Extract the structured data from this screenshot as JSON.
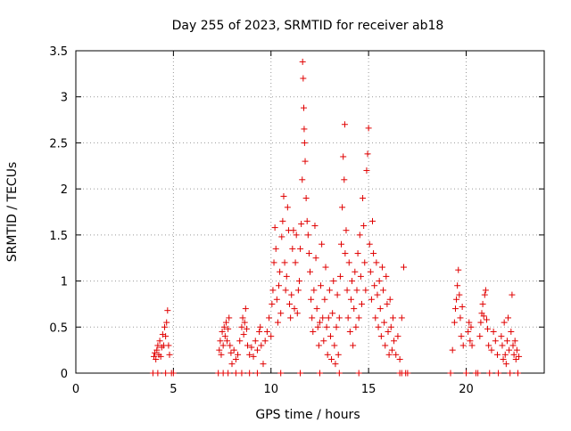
{
  "chart_data": {
    "type": "scatter",
    "title": "Day 255 of 2023, SRMTID for receiver ab18",
    "xlabel": "GPS time / hours",
    "ylabel": "SRMTID / TECUs",
    "xlim": [
      0,
      24
    ],
    "ylim": [
      0,
      3.5
    ],
    "xticks": [
      0,
      5,
      10,
      15,
      20
    ],
    "xtick_labels": [
      "0",
      "5",
      "10",
      "15",
      "20"
    ],
    "yticks": [
      0,
      0.5,
      1,
      1.5,
      2,
      2.5,
      3,
      3.5
    ],
    "ytick_labels": [
      "0",
      "0.5",
      "1",
      "1.5",
      "2",
      "2.5",
      "3",
      "3.5"
    ],
    "grid": true,
    "marker": "+",
    "marker_color": "#e00000",
    "series": [
      {
        "name": "SRMTID",
        "points": [
          [
            3.95,
            0.0
          ],
          [
            4.0,
            0.18
          ],
          [
            4.05,
            0.22
          ],
          [
            4.1,
            0.15
          ],
          [
            4.15,
            0.25
          ],
          [
            4.2,
            0.3
          ],
          [
            4.25,
            0.2
          ],
          [
            4.3,
            0.35
          ],
          [
            4.35,
            0.18
          ],
          [
            4.4,
            0.28
          ],
          [
            4.45,
            0.42
          ],
          [
            4.5,
            0.3
          ],
          [
            4.55,
            0.5
          ],
          [
            4.6,
            0.4
          ],
          [
            4.65,
            0.55
          ],
          [
            4.7,
            0.68
          ],
          [
            4.75,
            0.3
          ],
          [
            4.8,
            0.2
          ],
          [
            4.9,
            0.0
          ],
          [
            5.0,
            0.0
          ],
          [
            4.2,
            0.0
          ],
          [
            4.6,
            0.0
          ],
          [
            7.3,
            0.0
          ],
          [
            7.35,
            0.25
          ],
          [
            7.4,
            0.35
          ],
          [
            7.45,
            0.2
          ],
          [
            7.5,
            0.45
          ],
          [
            7.55,
            0.3
          ],
          [
            7.6,
            0.5
          ],
          [
            7.65,
            0.4
          ],
          [
            7.7,
            0.55
          ],
          [
            7.75,
            0.35
          ],
          [
            7.8,
            0.48
          ],
          [
            7.85,
            0.6
          ],
          [
            7.9,
            0.3
          ],
          [
            7.95,
            0.22
          ],
          [
            7.55,
            0.0
          ],
          [
            7.8,
            0.0
          ],
          [
            8.0,
            0.1
          ],
          [
            8.1,
            0.25
          ],
          [
            8.2,
            0.15
          ],
          [
            8.3,
            0.2
          ],
          [
            8.4,
            0.35
          ],
          [
            8.5,
            0.5
          ],
          [
            8.55,
            0.6
          ],
          [
            8.6,
            0.42
          ],
          [
            8.65,
            0.55
          ],
          [
            8.7,
            0.7
          ],
          [
            8.75,
            0.48
          ],
          [
            8.8,
            0.3
          ],
          [
            8.9,
            0.2
          ],
          [
            9.0,
            0.28
          ],
          [
            9.1,
            0.18
          ],
          [
            9.2,
            0.35
          ],
          [
            9.3,
            0.25
          ],
          [
            9.4,
            0.45
          ],
          [
            9.45,
            0.5
          ],
          [
            9.5,
            0.3
          ],
          [
            9.6,
            0.1
          ],
          [
            8.2,
            0.0
          ],
          [
            8.5,
            0.0
          ],
          [
            8.9,
            0.0
          ],
          [
            9.3,
            0.0
          ],
          [
            9.7,
            0.35
          ],
          [
            9.8,
            0.45
          ],
          [
            9.9,
            0.6
          ],
          [
            10.0,
            0.4
          ],
          [
            10.05,
            0.75
          ],
          [
            10.1,
            0.9
          ],
          [
            10.15,
            1.2
          ],
          [
            10.2,
            1.58
          ],
          [
            10.25,
            1.35
          ],
          [
            10.3,
            0.8
          ],
          [
            10.35,
            0.55
          ],
          [
            10.4,
            0.95
          ],
          [
            10.45,
            1.1
          ],
          [
            10.5,
            0.65
          ],
          [
            10.55,
            1.48
          ],
          [
            10.6,
            1.65
          ],
          [
            10.65,
            1.92
          ],
          [
            10.7,
            1.2
          ],
          [
            10.75,
            0.9
          ],
          [
            10.8,
            1.05
          ],
          [
            10.85,
            1.8
          ],
          [
            10.9,
            1.55
          ],
          [
            10.95,
            0.75
          ],
          [
            11.0,
            0.6
          ],
          [
            11.05,
            0.85
          ],
          [
            11.1,
            1.35
          ],
          [
            11.15,
            1.55
          ],
          [
            11.2,
            0.7
          ],
          [
            11.25,
            1.2
          ],
          [
            11.3,
            1.5
          ],
          [
            11.35,
            0.65
          ],
          [
            11.4,
            0.9
          ],
          [
            11.45,
            1.0
          ],
          [
            11.5,
            1.35
          ],
          [
            11.55,
            1.62
          ],
          [
            11.6,
            2.1
          ],
          [
            11.62,
            3.38
          ],
          [
            11.65,
            3.2
          ],
          [
            11.68,
            2.88
          ],
          [
            11.7,
            2.65
          ],
          [
            11.72,
            2.5
          ],
          [
            11.75,
            2.3
          ],
          [
            11.8,
            1.9
          ],
          [
            11.85,
            1.65
          ],
          [
            11.9,
            1.5
          ],
          [
            11.95,
            1.3
          ],
          [
            12.0,
            1.1
          ],
          [
            12.05,
            0.8
          ],
          [
            12.1,
            0.6
          ],
          [
            12.15,
            0.45
          ],
          [
            12.2,
            0.9
          ],
          [
            12.25,
            1.6
          ],
          [
            12.3,
            1.25
          ],
          [
            12.35,
            0.7
          ],
          [
            12.4,
            0.5
          ],
          [
            12.45,
            0.3
          ],
          [
            12.5,
            0.55
          ],
          [
            12.55,
            0.95
          ],
          [
            12.6,
            1.4
          ],
          [
            12.65,
            0.6
          ],
          [
            12.7,
            0.35
          ],
          [
            12.75,
            0.8
          ],
          [
            12.8,
            1.15
          ],
          [
            12.85,
            0.5
          ],
          [
            12.9,
            0.2
          ],
          [
            12.95,
            0.6
          ],
          [
            13.0,
            0.9
          ],
          [
            13.05,
            0.4
          ],
          [
            13.1,
            0.15
          ],
          [
            13.15,
            0.65
          ],
          [
            13.2,
            1.0
          ],
          [
            13.25,
            0.3
          ],
          [
            13.3,
            0.1
          ],
          [
            13.35,
            0.5
          ],
          [
            13.4,
            0.85
          ],
          [
            13.45,
            0.2
          ],
          [
            13.5,
            0.6
          ],
          [
            13.55,
            1.05
          ],
          [
            13.6,
            1.4
          ],
          [
            13.65,
            1.8
          ],
          [
            13.7,
            2.35
          ],
          [
            13.75,
            2.1
          ],
          [
            13.78,
            2.7
          ],
          [
            13.8,
            1.3
          ],
          [
            13.85,
            1.55
          ],
          [
            13.9,
            0.9
          ],
          [
            13.95,
            0.6
          ],
          [
            14.0,
            1.2
          ],
          [
            14.05,
            0.45
          ],
          [
            14.1,
            0.8
          ],
          [
            14.15,
            1.0
          ],
          [
            14.2,
            0.3
          ],
          [
            14.25,
            0.7
          ],
          [
            14.3,
            1.1
          ],
          [
            14.35,
            0.5
          ],
          [
            14.4,
            0.9
          ],
          [
            14.45,
            1.3
          ],
          [
            14.5,
            0.6
          ],
          [
            14.55,
            1.5
          ],
          [
            14.6,
            1.05
          ],
          [
            14.65,
            0.75
          ],
          [
            14.7,
            1.9
          ],
          [
            14.75,
            1.6
          ],
          [
            14.8,
            1.2
          ],
          [
            14.85,
            0.9
          ],
          [
            14.9,
            2.2
          ],
          [
            14.95,
            2.38
          ],
          [
            15.0,
            2.66
          ],
          [
            15.05,
            1.4
          ],
          [
            15.1,
            1.1
          ],
          [
            15.15,
            0.8
          ],
          [
            15.2,
            1.65
          ],
          [
            15.25,
            1.3
          ],
          [
            15.3,
            0.95
          ],
          [
            15.35,
            0.6
          ],
          [
            15.4,
            1.2
          ],
          [
            15.45,
            0.85
          ],
          [
            15.5,
            0.5
          ],
          [
            15.55,
            1.0
          ],
          [
            15.6,
            0.7
          ],
          [
            15.65,
            0.4
          ],
          [
            15.7,
            1.15
          ],
          [
            15.75,
            0.9
          ],
          [
            15.8,
            0.55
          ],
          [
            15.85,
            0.3
          ],
          [
            15.9,
            1.05
          ],
          [
            15.95,
            0.75
          ],
          [
            16.0,
            0.45
          ],
          [
            16.05,
            0.2
          ],
          [
            16.1,
            0.8
          ],
          [
            16.15,
            0.5
          ],
          [
            16.2,
            0.25
          ],
          [
            16.25,
            0.6
          ],
          [
            16.3,
            0.35
          ],
          [
            16.4,
            0.2
          ],
          [
            16.5,
            0.4
          ],
          [
            16.6,
            0.15
          ],
          [
            16.7,
            0.6
          ],
          [
            16.8,
            1.15
          ],
          [
            10.5,
            0.0
          ],
          [
            11.5,
            0.0
          ],
          [
            12.5,
            0.0
          ],
          [
            13.5,
            0.0
          ],
          [
            14.5,
            0.0
          ],
          [
            16.6,
            0.0
          ],
          [
            16.7,
            0.0
          ],
          [
            16.9,
            0.0
          ],
          [
            17.0,
            0.0
          ],
          [
            19.2,
            0.0
          ],
          [
            19.3,
            0.25
          ],
          [
            19.4,
            0.55
          ],
          [
            19.45,
            0.7
          ],
          [
            19.5,
            0.8
          ],
          [
            19.55,
            0.95
          ],
          [
            19.6,
            1.12
          ],
          [
            19.65,
            0.85
          ],
          [
            19.7,
            0.6
          ],
          [
            19.75,
            0.4
          ],
          [
            19.8,
            0.72
          ],
          [
            19.85,
            0.3
          ],
          [
            20.0,
            0.0
          ],
          [
            20.1,
            0.45
          ],
          [
            20.15,
            0.55
          ],
          [
            20.2,
            0.35
          ],
          [
            20.25,
            0.5
          ],
          [
            20.3,
            0.3
          ],
          [
            20.5,
            0.0
          ],
          [
            20.6,
            0.0
          ],
          [
            20.7,
            0.4
          ],
          [
            20.75,
            0.55
          ],
          [
            20.8,
            0.65
          ],
          [
            20.85,
            0.75
          ],
          [
            20.9,
            0.62
          ],
          [
            20.95,
            0.85
          ],
          [
            21.0,
            0.9
          ],
          [
            21.05,
            0.58
          ],
          [
            21.1,
            0.48
          ],
          [
            21.15,
            0.3
          ],
          [
            21.2,
            0.0
          ],
          [
            21.3,
            0.25
          ],
          [
            21.4,
            0.45
          ],
          [
            21.5,
            0.35
          ],
          [
            21.6,
            0.2
          ],
          [
            21.65,
            0.0
          ],
          [
            21.8,
            0.4
          ],
          [
            21.85,
            0.3
          ],
          [
            21.9,
            0.15
          ],
          [
            21.95,
            0.55
          ],
          [
            22.0,
            0.2
          ],
          [
            22.05,
            0.1
          ],
          [
            22.1,
            0.35
          ],
          [
            22.15,
            0.6
          ],
          [
            22.2,
            0.25
          ],
          [
            22.25,
            0.0
          ],
          [
            22.3,
            0.45
          ],
          [
            22.35,
            0.85
          ],
          [
            22.4,
            0.3
          ],
          [
            22.45,
            0.2
          ],
          [
            22.5,
            0.35
          ],
          [
            22.55,
            0.15
          ],
          [
            22.6,
            0.25
          ],
          [
            22.65,
            0.0
          ],
          [
            22.7,
            0.18
          ]
        ]
      }
    ]
  }
}
